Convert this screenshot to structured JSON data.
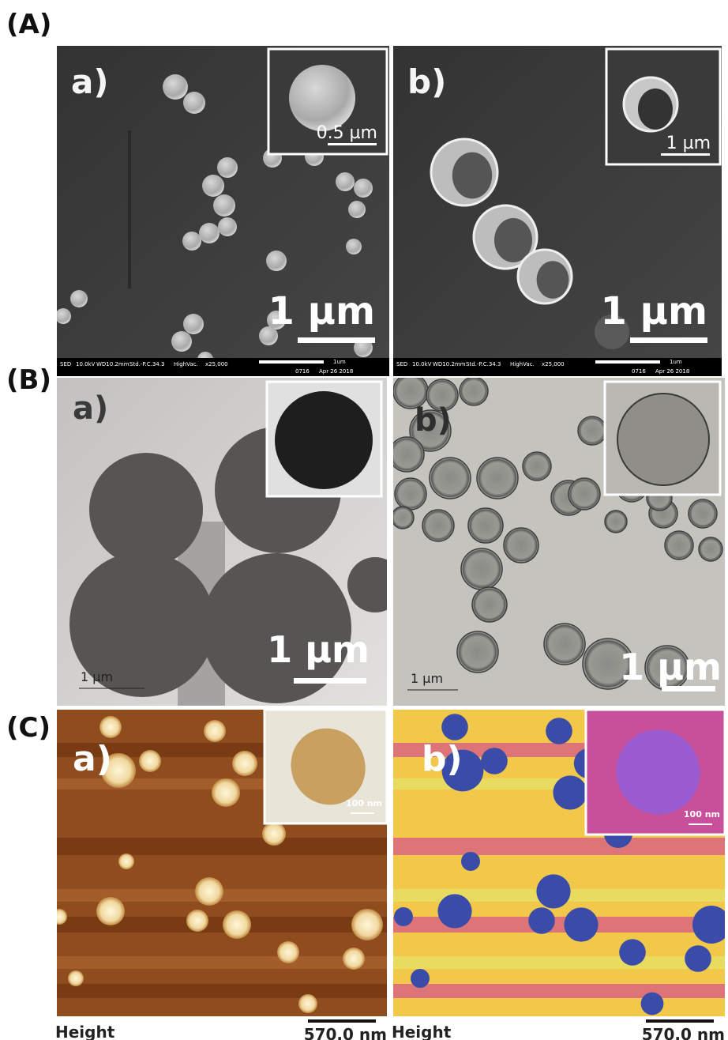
{
  "sections": [
    {
      "label": "(A)",
      "panels": [
        {
          "label": "a)",
          "inset_scale": "0.5 µm",
          "scale": "1 µm",
          "info_bar": [
            "SED",
            "10.0kV",
            "WD10.2mm",
            "Std.-P.C.34.3",
            "HighVac.",
            "x25,000",
            "1um",
            "0716",
            "Apr 26 2018"
          ]
        },
        {
          "label": "b)",
          "inset_scale": "1 µm",
          "scale": "1 µm",
          "info_bar": [
            "SED",
            "10.0kV",
            "WD10.2mm",
            "Std.-P.C.34.3",
            "HighVac.",
            "x25,000",
            "1um",
            "0716",
            "Apr 26 2018"
          ]
        }
      ]
    },
    {
      "label": "(B)",
      "panels": [
        {
          "label": "a)",
          "scale": "1 µm",
          "small_scale": "1 µm"
        },
        {
          "label": "b)",
          "scale": "1 µm",
          "small_scale": "1 µm"
        }
      ]
    },
    {
      "label": "(C)",
      "panels": [
        {
          "label": "a)",
          "inset_scale": "100 nm",
          "channel": "Height",
          "scale": "570.0 nm"
        },
        {
          "label": "b)",
          "inset_scale": "100 nm",
          "channel": "Height",
          "scale": "570.0 nm"
        }
      ]
    }
  ]
}
